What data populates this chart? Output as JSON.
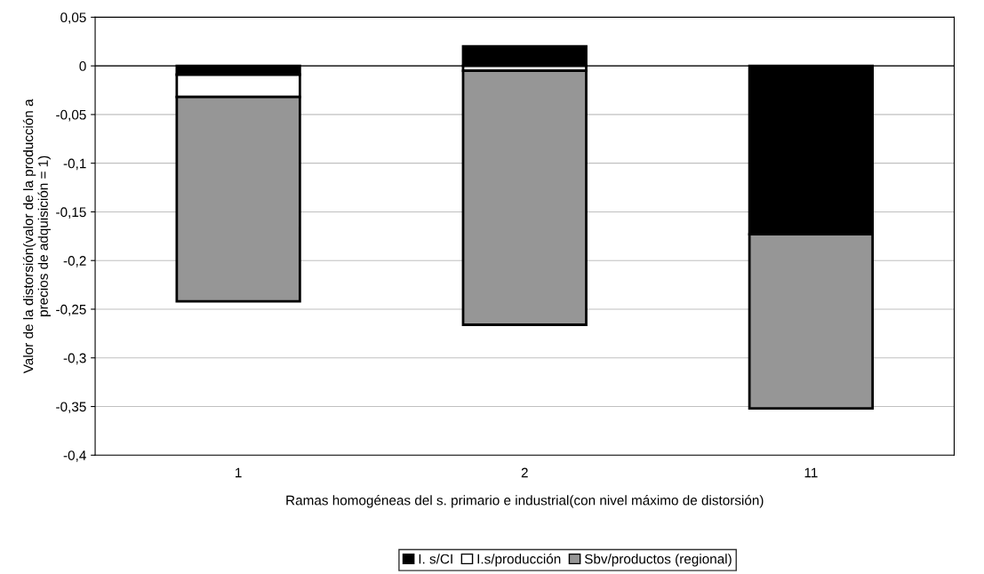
{
  "chart_data": {
    "type": "bar",
    "stacked": true,
    "xlabel": "Ramas homogéneas del s. primario e industrial(con nivel máximo de distorsión)",
    "ylabel": "Valor de la distorsión(valor de la producción a\nprecios de adquisición = 1)",
    "categories": [
      "1",
      "2",
      "11"
    ],
    "series": [
      {
        "name": "I. s/CI",
        "color": "#000000",
        "values": [
          -0.009,
          0.02,
          -0.173
        ]
      },
      {
        "name": "I.s/producción",
        "color": "#ffffff",
        "values": [
          -0.023,
          -0.005,
          null
        ]
      },
      {
        "name": "Sbv/productos (regional)",
        "color": "#969696",
        "values": [
          -0.21,
          -0.261,
          -0.179
        ]
      }
    ],
    "ylim": [
      -0.4,
      0.05
    ],
    "yticks": [
      {
        "value": -0.4,
        "label": "-0,4"
      },
      {
        "value": -0.35,
        "label": "-0,35"
      },
      {
        "value": -0.3,
        "label": "-0,3"
      },
      {
        "value": -0.25,
        "label": "-0,25"
      },
      {
        "value": -0.2,
        "label": "-0,2"
      },
      {
        "value": -0.15,
        "label": "-0,15"
      },
      {
        "value": -0.1,
        "label": "-0,1"
      },
      {
        "value": -0.05,
        "label": "-0,05"
      },
      {
        "value": 0,
        "label": "0"
      },
      {
        "value": 0.05,
        "label": "0,05"
      }
    ],
    "grid": "y",
    "legend": "bottom"
  }
}
